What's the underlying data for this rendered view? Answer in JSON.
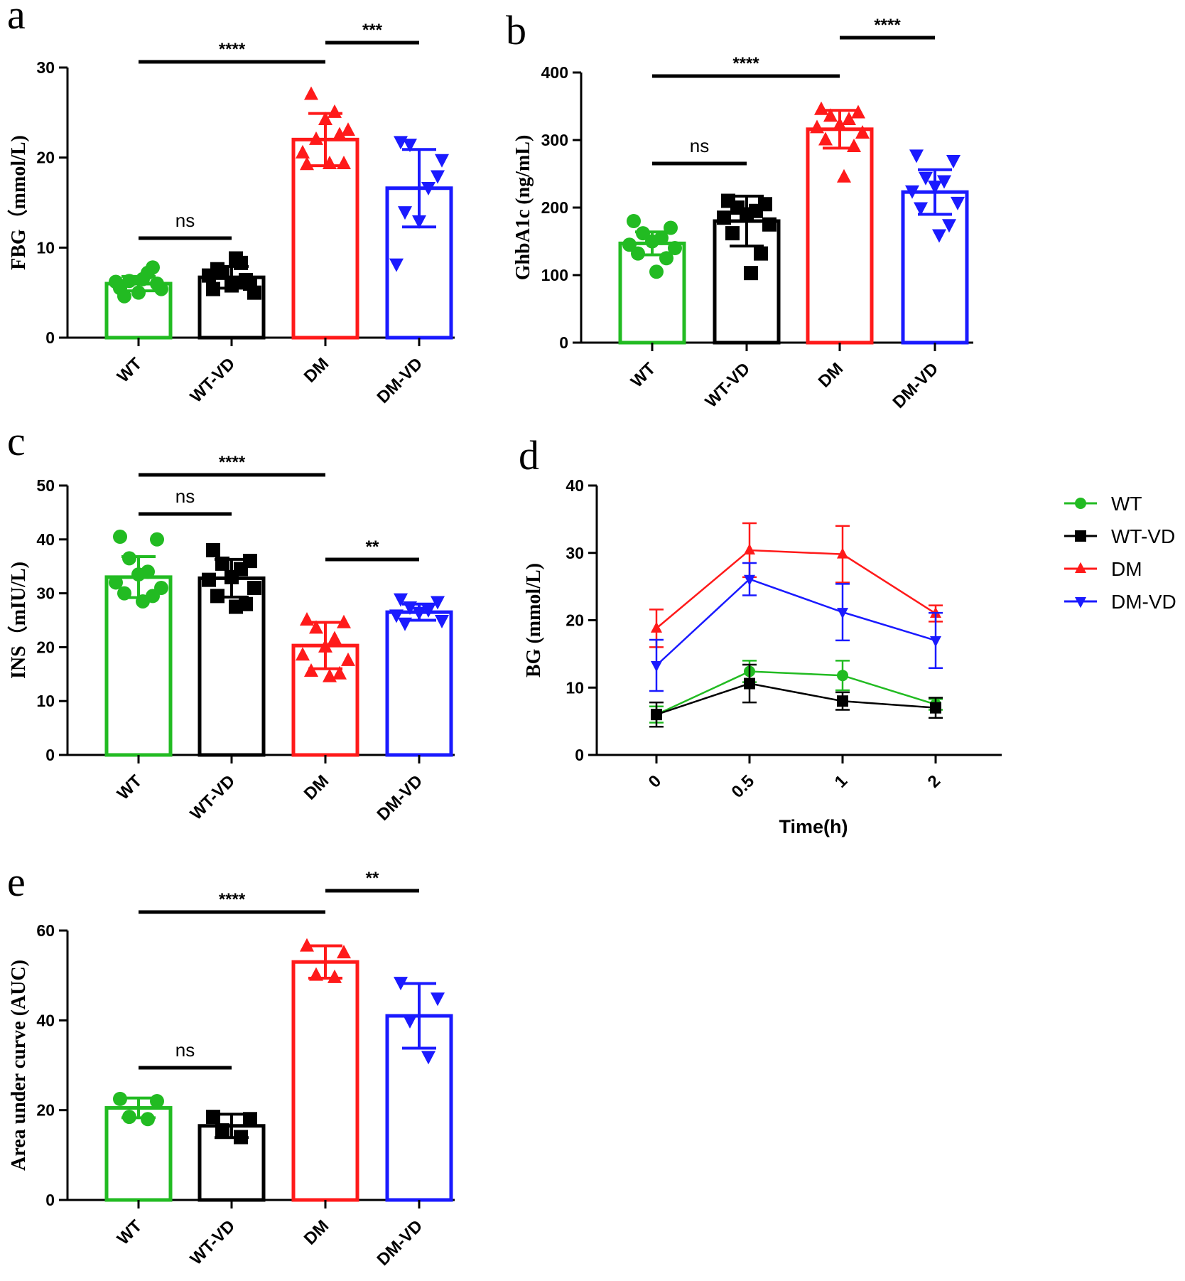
{
  "colors": {
    "WT": "#22bb22",
    "WT-VD": "#000000",
    "DM": "#ff1a1a",
    "DM-VD": "#1a1aff"
  },
  "chart_data": [
    {
      "panel": "a",
      "type": "bar",
      "ylabel": "FBG（mmol/L)",
      "ylim": [
        0,
        30
      ],
      "yticks": [
        0,
        10,
        20,
        30
      ],
      "categories": [
        "WT",
        "WT-VD",
        "DM",
        "DM-VD"
      ],
      "values": [
        6.0,
        6.7,
        22.0,
        16.6
      ],
      "sd": [
        0.8,
        1.2,
        2.9,
        4.3
      ],
      "points": [
        [
          5.5,
          6.0,
          6.3,
          7.2,
          5.0,
          6.2,
          5.4,
          4.6,
          7.8,
          6.5
        ],
        [
          5.4,
          6.0,
          7.2,
          8.3,
          5.8,
          6.9,
          5.0,
          7.6,
          6.4,
          8.8
        ],
        [
          19.2,
          19.3,
          22.0,
          25.0,
          24.2,
          20.5,
          23.0,
          27.0,
          22.5,
          19.3
        ],
        [
          21.8,
          18.0,
          21.5,
          16.7,
          13.0,
          8.2,
          19.8,
          14.0
        ]
      ],
      "significance": [
        {
          "from": 0,
          "to": 1,
          "label": "ns"
        },
        {
          "from": 0,
          "to": 2,
          "label": "****"
        },
        {
          "from": 2,
          "to": 3,
          "label": "***"
        }
      ]
    },
    {
      "panel": "b",
      "type": "bar",
      "ylabel": "GhbA1c (ng/mL)",
      "ylim": [
        0,
        400
      ],
      "yticks": [
        0,
        100,
        200,
        300,
        400
      ],
      "categories": [
        "WT",
        "WT-VD",
        "DM",
        "DM-VD"
      ],
      "values": [
        147,
        180,
        316,
        223
      ],
      "sd": [
        17,
        37,
        28,
        33
      ],
      "points": [
        [
          180,
          170,
          162,
          155,
          150,
          145,
          140,
          132,
          125,
          105
        ],
        [
          210,
          205,
          200,
          195,
          190,
          185,
          175,
          162,
          132,
          103
        ],
        [
          345,
          340,
          335,
          330,
          322,
          318,
          310,
          300,
          290,
          245
        ],
        [
          278,
          270,
          245,
          240,
          232,
          225,
          208,
          200,
          175,
          160
        ]
      ],
      "significance": [
        {
          "from": 0,
          "to": 1,
          "label": "ns"
        },
        {
          "from": 0,
          "to": 2,
          "label": "****"
        },
        {
          "from": 2,
          "to": 3,
          "label": "****"
        }
      ]
    },
    {
      "panel": "c",
      "type": "bar",
      "ylabel": "INS（mIU/L)",
      "ylim": [
        0,
        50
      ],
      "yticks": [
        0,
        10,
        20,
        30,
        40,
        50
      ],
      "categories": [
        "WT",
        "WT-VD",
        "DM",
        "DM-VD"
      ],
      "values": [
        33.0,
        32.8,
        20.3,
        26.5
      ],
      "sd": [
        3.8,
        3.5,
        4.3,
        1.5
      ],
      "points": [
        [
          40.5,
          40.0,
          36.5,
          34.0,
          33.5,
          32.0,
          31.0,
          30.0,
          29.5,
          28.5
        ],
        [
          38.0,
          36.0,
          35.5,
          34.5,
          33.0,
          32.5,
          31.0,
          29.5,
          28.0,
          27.5
        ],
        [
          25.0,
          24.5,
          23.5,
          21.5,
          20.0,
          18.5,
          17.5,
          15.5,
          15.0,
          14.5
        ],
        [
          29.0,
          28.5,
          27.5,
          27.0,
          26.5,
          26.0,
          25.0,
          24.5
        ]
      ],
      "significance": [
        {
          "from": 0,
          "to": 1,
          "label": "ns"
        },
        {
          "from": 0,
          "to": 2,
          "label": "****"
        },
        {
          "from": 2,
          "to": 3,
          "label": "**"
        }
      ]
    },
    {
      "panel": "d",
      "type": "line",
      "xlabel": "Time(h)",
      "ylabel": "BG (mmol/L)",
      "ylim": [
        0,
        40
      ],
      "yticks": [
        0,
        10,
        20,
        30,
        40
      ],
      "x": [
        "0",
        "0.5",
        "1",
        "2"
      ],
      "series": [
        {
          "name": "WT",
          "values": [
            6.0,
            12.4,
            11.8,
            7.5
          ],
          "sd": [
            1.2,
            1.6,
            2.2,
            0.8
          ]
        },
        {
          "name": "WT-VD",
          "values": [
            6.0,
            10.6,
            8.0,
            7.0
          ],
          "sd": [
            1.8,
            2.8,
            1.3,
            1.5
          ]
        },
        {
          "name": "DM",
          "values": [
            18.8,
            30.4,
            29.8,
            21.0
          ],
          "sd": [
            2.8,
            4.0,
            4.2,
            1.2
          ]
        },
        {
          "name": "DM-VD",
          "values": [
            13.3,
            26.1,
            21.2,
            17.0
          ],
          "sd": [
            3.8,
            2.4,
            4.2,
            4.1
          ]
        }
      ],
      "legend": [
        "WT",
        "WT-VD",
        "DM",
        "DM-VD"
      ],
      "legend_position": "right"
    },
    {
      "panel": "e",
      "type": "bar",
      "ylabel": "Area under curve (AUC)",
      "ylim": [
        0,
        60
      ],
      "yticks": [
        0,
        20,
        40,
        60
      ],
      "categories": [
        "WT",
        "WT-VD",
        "DM",
        "DM-VD"
      ],
      "values": [
        20.5,
        16.5,
        53.0,
        41.0
      ],
      "sd": [
        2.2,
        2.6,
        3.6,
        7.2
      ],
      "points": [
        [
          22.5,
          22.0,
          18.5,
          18.0
        ],
        [
          18.5,
          18.0,
          15.5,
          14.0
        ],
        [
          56.5,
          55.0,
          50.0,
          49.5
        ],
        [
          48.5,
          45.0,
          40.0,
          32.0
        ]
      ],
      "significance": [
        {
          "from": 0,
          "to": 1,
          "label": "ns"
        },
        {
          "from": 0,
          "to": 2,
          "label": "****"
        },
        {
          "from": 2,
          "to": 3,
          "label": "**"
        }
      ]
    }
  ]
}
